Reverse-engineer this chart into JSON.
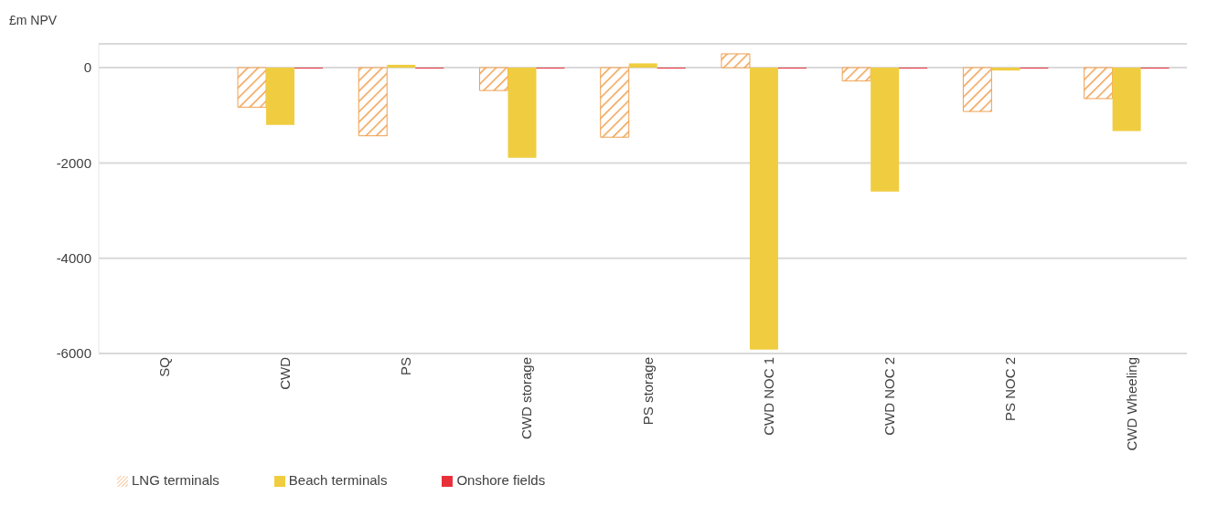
{
  "chart_data": {
    "type": "bar",
    "ylabel": "£m NPV",
    "categories": [
      "SQ",
      "CWD",
      "PS",
      "CWD storage",
      "PS storage",
      "CWD NOC 1",
      "CWD NOC 2",
      "PS NOC 2",
      "CWD Wheeling"
    ],
    "series": [
      {
        "name": "LNG terminals",
        "color": "#f0a050",
        "values": [
          0,
          -830,
          -1430,
          -480,
          -1460,
          290,
          -280,
          -920,
          -650
        ]
      },
      {
        "name": "Beach terminals",
        "color": "#f0cd40",
        "values": [
          0,
          -1200,
          60,
          -1890,
          90,
          -5920,
          -2600,
          -60,
          -1330
        ]
      },
      {
        "name": "Onshore fields",
        "color": "#e8303a",
        "values": [
          0,
          -20,
          -20,
          -20,
          -20,
          -20,
          -20,
          -20,
          -20
        ]
      }
    ],
    "ylim": [
      -6000,
      500
    ],
    "yticks": [
      -6000,
      -4000,
      -2000,
      0
    ],
    "grid": "y",
    "legend": "bottom left"
  }
}
